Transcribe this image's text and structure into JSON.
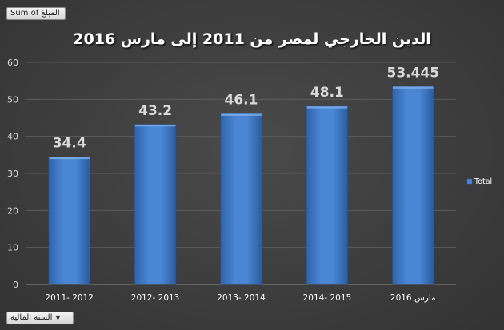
{
  "pivot": {
    "values_field": "Sum of المبلغ",
    "axis_field": "السنة المالية",
    "dropdown_icon": "chevron-down-icon"
  },
  "chart_data": {
    "type": "bar",
    "title": "الدين الخارجي لمصر من 2011 إلى مارس 2016",
    "categories": [
      "2011- 2012",
      "2012- 2013",
      "2013- 2014",
      "2014- 2015",
      "مارس 2016"
    ],
    "series": [
      {
        "name": "Total",
        "values": [
          34.4,
          43.2,
          46.1,
          48.1,
          53.445
        ]
      }
    ],
    "data_labels": [
      "34.4",
      "43.2",
      "46.1",
      "48.1",
      "53.445"
    ],
    "ylim": [
      0,
      60
    ],
    "yticks": [
      0,
      10,
      20,
      30,
      40,
      50,
      60
    ],
    "grid": true,
    "legend_position": "right",
    "colors": {
      "bar": "#3a78c8",
      "bar_light": "#5f9ae0",
      "text": "#ffffff",
      "label": "#d9d9d9"
    }
  }
}
